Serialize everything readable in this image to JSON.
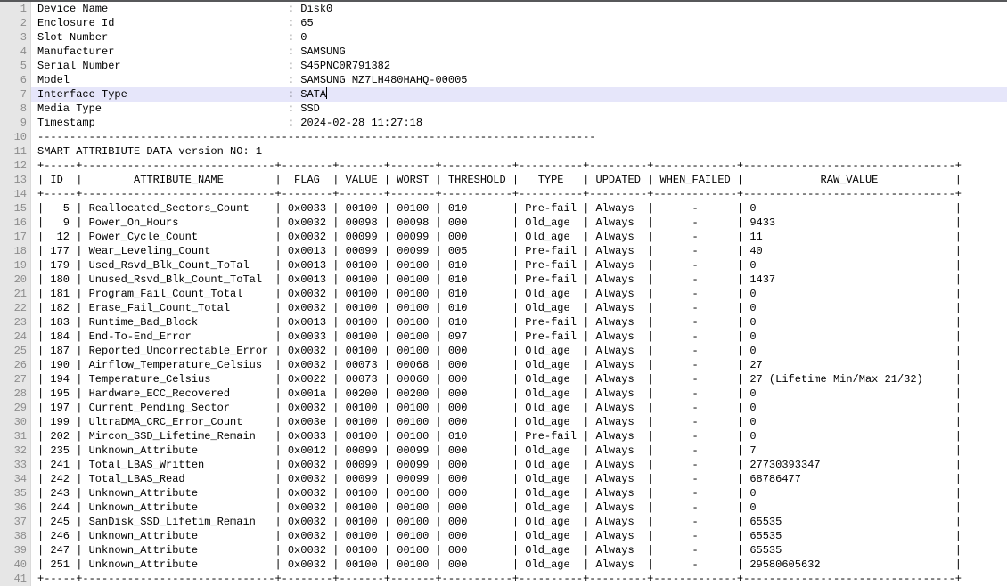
{
  "editor": {
    "colors": {
      "background": "#ffffff",
      "text": "#000000",
      "gutter_background": "#e6e6e6",
      "line_number": "#8c8c8c",
      "current_line_highlight": "#e6e6fa",
      "top_border": "#57585a"
    },
    "cursor_line": 7,
    "label_col_width": 39,
    "total_lines": 41
  },
  "device_info": [
    {
      "label": "Device Name",
      "value": "Disk0"
    },
    {
      "label": "Enclosure Id",
      "value": "65"
    },
    {
      "label": "Slot Number",
      "value": "0"
    },
    {
      "label": "Manufacturer",
      "value": "SAMSUNG"
    },
    {
      "label": "Serial Number",
      "value": "S45PNC0R791382"
    },
    {
      "label": "Model",
      "value": "SAMSUNG MZ7LH480HAHQ-00005"
    },
    {
      "label": "Interface Type",
      "value": "SATA"
    },
    {
      "label": "Media Type",
      "value": "SSD"
    },
    {
      "label": "Timestamp",
      "value": "2024-02-28 11:27:18"
    }
  ],
  "divider": "---------------------------------------------------------------------------------------",
  "smart_title": "SMART ATTRIBIUTE DATA version NO: 1",
  "table": {
    "columns": [
      {
        "label": "ID",
        "width": 5
      },
      {
        "label": "ATTRIBUTE_NAME",
        "width": 30
      },
      {
        "label": "FLAG",
        "width": 8
      },
      {
        "label": "VALUE",
        "width": 7
      },
      {
        "label": "WORST",
        "width": 7
      },
      {
        "label": "THRESHOLD",
        "width": 11
      },
      {
        "label": "TYPE",
        "width": 10
      },
      {
        "label": "UPDATED",
        "width": 9
      },
      {
        "label": "WHEN_FAILED",
        "width": 13
      },
      {
        "label": "RAW_VALUE",
        "width": 33
      }
    ],
    "rows": [
      {
        "id": "5",
        "name": "Reallocated_Sectors_Count",
        "flag": "0x0033",
        "value": "00100",
        "worst": "00100",
        "threshold": "010",
        "type": "Pre-fail",
        "updated": "Always",
        "when_failed": "-",
        "raw": "0"
      },
      {
        "id": "9",
        "name": "Power_On_Hours",
        "flag": "0x0032",
        "value": "00098",
        "worst": "00098",
        "threshold": "000",
        "type": "Old_age",
        "updated": "Always",
        "when_failed": "-",
        "raw": "9433"
      },
      {
        "id": "12",
        "name": "Power_Cycle_Count",
        "flag": "0x0032",
        "value": "00099",
        "worst": "00099",
        "threshold": "000",
        "type": "Old_age",
        "updated": "Always",
        "when_failed": "-",
        "raw": "11"
      },
      {
        "id": "177",
        "name": "Wear_Leveling_Count",
        "flag": "0x0013",
        "value": "00099",
        "worst": "00099",
        "threshold": "005",
        "type": "Pre-fail",
        "updated": "Always",
        "when_failed": "-",
        "raw": "40"
      },
      {
        "id": "179",
        "name": "Used_Rsvd_Blk_Count_ToTal",
        "flag": "0x0013",
        "value": "00100",
        "worst": "00100",
        "threshold": "010",
        "type": "Pre-fail",
        "updated": "Always",
        "when_failed": "-",
        "raw": "0"
      },
      {
        "id": "180",
        "name": "Unused_Rsvd_Blk_Count_ToTal",
        "flag": "0x0013",
        "value": "00100",
        "worst": "00100",
        "threshold": "010",
        "type": "Pre-fail",
        "updated": "Always",
        "when_failed": "-",
        "raw": "1437"
      },
      {
        "id": "181",
        "name": "Program_Fail_Count_Total",
        "flag": "0x0032",
        "value": "00100",
        "worst": "00100",
        "threshold": "010",
        "type": "Old_age",
        "updated": "Always",
        "when_failed": "-",
        "raw": "0"
      },
      {
        "id": "182",
        "name": "Erase_Fail_Count_Total",
        "flag": "0x0032",
        "value": "00100",
        "worst": "00100",
        "threshold": "010",
        "type": "Old_age",
        "updated": "Always",
        "when_failed": "-",
        "raw": "0"
      },
      {
        "id": "183",
        "name": "Runtime_Bad_Block",
        "flag": "0x0013",
        "value": "00100",
        "worst": "00100",
        "threshold": "010",
        "type": "Pre-fail",
        "updated": "Always",
        "when_failed": "-",
        "raw": "0"
      },
      {
        "id": "184",
        "name": "End-To-End_Error",
        "flag": "0x0033",
        "value": "00100",
        "worst": "00100",
        "threshold": "097",
        "type": "Pre-fail",
        "updated": "Always",
        "when_failed": "-",
        "raw": "0"
      },
      {
        "id": "187",
        "name": "Reported_Uncorrectable_Error",
        "flag": "0x0032",
        "value": "00100",
        "worst": "00100",
        "threshold": "000",
        "type": "Old_age",
        "updated": "Always",
        "when_failed": "-",
        "raw": "0"
      },
      {
        "id": "190",
        "name": "Airflow_Temperature_Celsius",
        "flag": "0x0032",
        "value": "00073",
        "worst": "00068",
        "threshold": "000",
        "type": "Old_age",
        "updated": "Always",
        "when_failed": "-",
        "raw": "27"
      },
      {
        "id": "194",
        "name": "Temperature_Celsius",
        "flag": "0x0022",
        "value": "00073",
        "worst": "00060",
        "threshold": "000",
        "type": "Old_age",
        "updated": "Always",
        "when_failed": "-",
        "raw": "27 (Lifetime Min/Max 21/32)"
      },
      {
        "id": "195",
        "name": "Hardware_ECC_Recovered",
        "flag": "0x001a",
        "value": "00200",
        "worst": "00200",
        "threshold": "000",
        "type": "Old_age",
        "updated": "Always",
        "when_failed": "-",
        "raw": "0"
      },
      {
        "id": "197",
        "name": "Current_Pending_Sector",
        "flag": "0x0032",
        "value": "00100",
        "worst": "00100",
        "threshold": "000",
        "type": "Old_age",
        "updated": "Always",
        "when_failed": "-",
        "raw": "0"
      },
      {
        "id": "199",
        "name": "UltraDMA_CRC_Error_Count",
        "flag": "0x003e",
        "value": "00100",
        "worst": "00100",
        "threshold": "000",
        "type": "Old_age",
        "updated": "Always",
        "when_failed": "-",
        "raw": "0"
      },
      {
        "id": "202",
        "name": "Mircon_SSD_Lifetime_Remain",
        "flag": "0x0033",
        "value": "00100",
        "worst": "00100",
        "threshold": "010",
        "type": "Pre-fail",
        "updated": "Always",
        "when_failed": "-",
        "raw": "0"
      },
      {
        "id": "235",
        "name": "Unknown_Attribute",
        "flag": "0x0012",
        "value": "00099",
        "worst": "00099",
        "threshold": "000",
        "type": "Old_age",
        "updated": "Always",
        "when_failed": "-",
        "raw": "7"
      },
      {
        "id": "241",
        "name": "Total_LBAS_Written",
        "flag": "0x0032",
        "value": "00099",
        "worst": "00099",
        "threshold": "000",
        "type": "Old_age",
        "updated": "Always",
        "when_failed": "-",
        "raw": "27730393347"
      },
      {
        "id": "242",
        "name": "Total_LBAS_Read",
        "flag": "0x0032",
        "value": "00099",
        "worst": "00099",
        "threshold": "000",
        "type": "Old_age",
        "updated": "Always",
        "when_failed": "-",
        "raw": "68786477"
      },
      {
        "id": "243",
        "name": "Unknown_Attribute",
        "flag": "0x0032",
        "value": "00100",
        "worst": "00100",
        "threshold": "000",
        "type": "Old_age",
        "updated": "Always",
        "when_failed": "-",
        "raw": "0"
      },
      {
        "id": "244",
        "name": "Unknown_Attribute",
        "flag": "0x0032",
        "value": "00100",
        "worst": "00100",
        "threshold": "000",
        "type": "Old_age",
        "updated": "Always",
        "when_failed": "-",
        "raw": "0"
      },
      {
        "id": "245",
        "name": "SanDisk_SSD_Lifetim_Remain",
        "flag": "0x0032",
        "value": "00100",
        "worst": "00100",
        "threshold": "000",
        "type": "Old_age",
        "updated": "Always",
        "when_failed": "-",
        "raw": "65535"
      },
      {
        "id": "246",
        "name": "Unknown_Attribute",
        "flag": "0x0032",
        "value": "00100",
        "worst": "00100",
        "threshold": "000",
        "type": "Old_age",
        "updated": "Always",
        "when_failed": "-",
        "raw": "65535"
      },
      {
        "id": "247",
        "name": "Unknown_Attribute",
        "flag": "0x0032",
        "value": "00100",
        "worst": "00100",
        "threshold": "000",
        "type": "Old_age",
        "updated": "Always",
        "when_failed": "-",
        "raw": "65535"
      },
      {
        "id": "251",
        "name": "Unknown_Attribute",
        "flag": "0x0032",
        "value": "00100",
        "worst": "00100",
        "threshold": "000",
        "type": "Old_age",
        "updated": "Always",
        "when_failed": "-",
        "raw": "29580605632"
      }
    ]
  }
}
